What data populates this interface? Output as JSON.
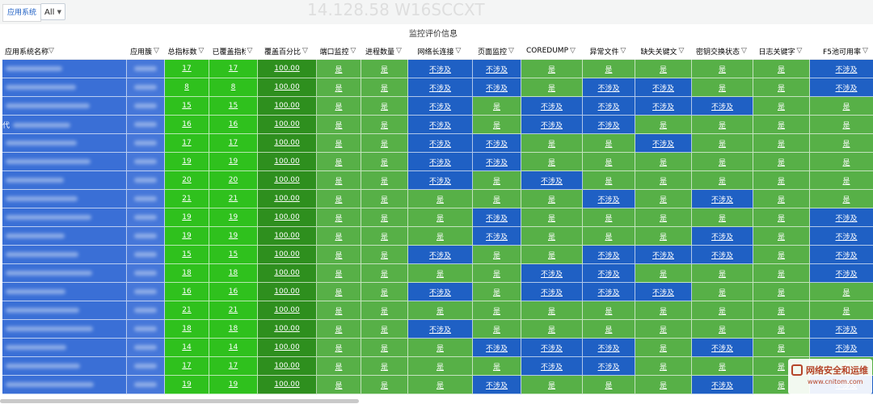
{
  "variable": {
    "label": "应用系统",
    "value": "All"
  },
  "panel": {
    "title": "监控评价信息"
  },
  "watermark": "14.128.58 W16SCCXT",
  "corner_logo": {
    "line1": "网络安全和运维",
    "line2": "www.cnitom.com"
  },
  "columns": [
    "应用系统名称",
    "应用簇",
    "总指标数",
    "已覆盖指标",
    "覆盖百分比",
    "端口监控",
    "进程数量",
    "网络长连接",
    "页面监控",
    "COREDUMP",
    "异常文件",
    "缺失关键文",
    "密钥交换状态",
    "日志关键字",
    "F5池可用率"
  ],
  "labels": {
    "yes": "是",
    "na": "不涉及"
  },
  "colors": {
    "green": "#57b047",
    "blue": "#1f60c4",
    "bright_green": "#2fc11d",
    "dark_green": "#2e8f1e"
  },
  "rows": [
    {
      "sys_prefix": "",
      "total": "17",
      "covered": "17",
      "pct": "100.00",
      "flags": [
        1,
        1,
        0,
        0,
        1,
        1,
        1,
        1,
        1,
        0
      ]
    },
    {
      "sys_prefix": "",
      "total": "8",
      "covered": "8",
      "pct": "100.00",
      "flags": [
        1,
        1,
        0,
        0,
        1,
        0,
        0,
        1,
        1,
        0
      ]
    },
    {
      "sys_prefix": "",
      "total": "15",
      "covered": "15",
      "pct": "100.00",
      "flags": [
        1,
        1,
        0,
        1,
        0,
        0,
        0,
        0,
        1,
        1
      ]
    },
    {
      "sys_prefix": "代",
      "total": "16",
      "covered": "16",
      "pct": "100.00",
      "flags": [
        1,
        1,
        0,
        1,
        0,
        0,
        1,
        1,
        1,
        1
      ]
    },
    {
      "sys_prefix": "",
      "total": "17",
      "covered": "17",
      "pct": "100.00",
      "flags": [
        1,
        1,
        0,
        0,
        1,
        1,
        0,
        1,
        1,
        1
      ]
    },
    {
      "sys_prefix": "",
      "total": "19",
      "covered": "19",
      "pct": "100.00",
      "flags": [
        1,
        1,
        0,
        0,
        1,
        1,
        1,
        1,
        1,
        1
      ]
    },
    {
      "sys_prefix": "",
      "total": "20",
      "covered": "20",
      "pct": "100.00",
      "flags": [
        1,
        1,
        0,
        1,
        0,
        1,
        1,
        1,
        1,
        1
      ]
    },
    {
      "sys_prefix": "",
      "total": "21",
      "covered": "21",
      "pct": "100.00",
      "flags": [
        1,
        1,
        1,
        1,
        1,
        0,
        1,
        0,
        1,
        1
      ]
    },
    {
      "sys_prefix": "",
      "total": "19",
      "covered": "19",
      "pct": "100.00",
      "flags": [
        1,
        1,
        1,
        0,
        1,
        1,
        1,
        1,
        1,
        0
      ]
    },
    {
      "sys_prefix": "",
      "total": "19",
      "covered": "19",
      "pct": "100.00",
      "flags": [
        1,
        1,
        1,
        0,
        1,
        1,
        1,
        0,
        1,
        0
      ]
    },
    {
      "sys_prefix": "",
      "total": "15",
      "covered": "15",
      "pct": "100.00",
      "flags": [
        1,
        1,
        0,
        1,
        1,
        0,
        0,
        0,
        1,
        0
      ]
    },
    {
      "sys_prefix": "",
      "total": "18",
      "covered": "18",
      "pct": "100.00",
      "flags": [
        1,
        1,
        1,
        1,
        0,
        0,
        1,
        1,
        1,
        0
      ]
    },
    {
      "sys_prefix": "",
      "total": "16",
      "covered": "16",
      "pct": "100.00",
      "flags": [
        1,
        1,
        0,
        1,
        0,
        0,
        0,
        1,
        1,
        1
      ]
    },
    {
      "sys_prefix": "",
      "total": "21",
      "covered": "21",
      "pct": "100.00",
      "flags": [
        1,
        1,
        1,
        1,
        1,
        1,
        1,
        1,
        1,
        1
      ]
    },
    {
      "sys_prefix": "",
      "total": "18",
      "covered": "18",
      "pct": "100.00",
      "flags": [
        1,
        1,
        0,
        1,
        1,
        1,
        1,
        1,
        1,
        0
      ]
    },
    {
      "sys_prefix": "",
      "total": "14",
      "covered": "14",
      "pct": "100.00",
      "flags": [
        1,
        1,
        1,
        0,
        0,
        0,
        1,
        0,
        1,
        0
      ]
    },
    {
      "sys_prefix": "",
      "total": "17",
      "covered": "17",
      "pct": "100.00",
      "flags": [
        1,
        1,
        1,
        1,
        0,
        0,
        1,
        1,
        1,
        1
      ]
    },
    {
      "sys_prefix": "",
      "total": "19",
      "covered": "19",
      "pct": "100.00",
      "flags": [
        1,
        1,
        1,
        0,
        1,
        1,
        1,
        0,
        1,
        0
      ]
    }
  ]
}
